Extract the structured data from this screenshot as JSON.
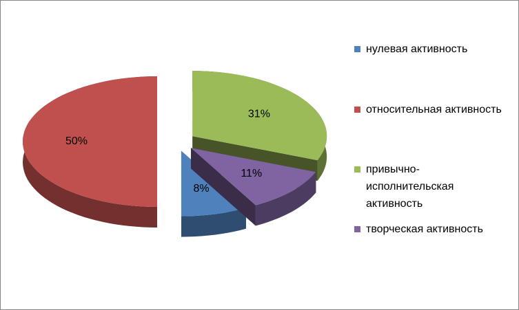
{
  "chart_data": {
    "type": "pie3d",
    "categories": [
      "нулевая активность",
      "относительная активность",
      "привычно-исполнительская активность",
      "творческая активность"
    ],
    "values": [
      8,
      50,
      31,
      11
    ],
    "value_labels": [
      "8%",
      "50%",
      "31%",
      "11%"
    ],
    "colors": [
      "#4f81bd",
      "#c0504d",
      "#9bbb59",
      "#8064a2"
    ],
    "legend": "right"
  }
}
